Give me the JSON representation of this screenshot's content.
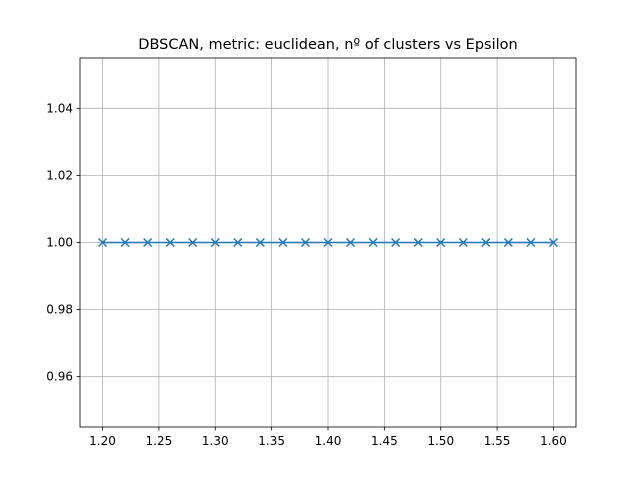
{
  "chart_data": {
    "type": "line",
    "title": "DBSCAN, metric: euclidean, nº of clusters vs Epsilon",
    "xlabel": "",
    "ylabel": "",
    "x": [
      1.2,
      1.22,
      1.24,
      1.26,
      1.28,
      1.3,
      1.32,
      1.34,
      1.36,
      1.38,
      1.4,
      1.42,
      1.44,
      1.46,
      1.48,
      1.5,
      1.52,
      1.54,
      1.56,
      1.58,
      1.6
    ],
    "series": [
      {
        "values": [
          1,
          1,
          1,
          1,
          1,
          1,
          1,
          1,
          1,
          1,
          1,
          1,
          1,
          1,
          1,
          1,
          1,
          1,
          1,
          1,
          1
        ],
        "color": "#1f77b4",
        "marker": "x"
      }
    ],
    "xlim": [
      1.18,
      1.62
    ],
    "ylim": [
      0.945,
      1.055
    ],
    "xticks": [
      1.2,
      1.25,
      1.3,
      1.35,
      1.4,
      1.45,
      1.5,
      1.55,
      1.6
    ],
    "xtick_labels": [
      "1.20",
      "1.25",
      "1.30",
      "1.35",
      "1.40",
      "1.45",
      "1.50",
      "1.55",
      "1.60"
    ],
    "yticks": [
      0.96,
      0.98,
      1.0,
      1.02,
      1.04
    ],
    "ytick_labels": [
      "0.96",
      "0.98",
      "1.00",
      "1.02",
      "1.04"
    ],
    "grid": true
  }
}
